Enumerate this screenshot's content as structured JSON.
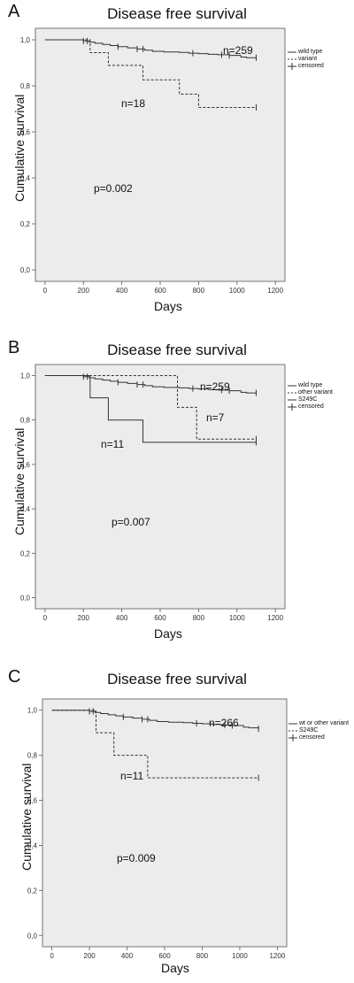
{
  "chart_data": [
    {
      "type": "line",
      "panel_letter": "A",
      "title": "Disease free survival",
      "xlabel": "Days",
      "ylabel": "Cumulative survival",
      "xlim": [
        -50,
        1250
      ],
      "ylim": [
        -0.05,
        1.05
      ],
      "xticks": [
        0,
        200,
        400,
        600,
        800,
        1000,
        1200
      ],
      "yticks": [
        0.0,
        0.2,
        0.4,
        0.6,
        0.8,
        1.0
      ],
      "ytick_labels": [
        "0,0",
        "0,2",
        "0,4",
        "0,6",
        "0,8",
        "1,0"
      ],
      "p_value": "p=0.002",
      "n_labels": [
        {
          "text": "n=259",
          "x": 840,
          "y": 0.955
        },
        {
          "text": "n=18",
          "x": 370,
          "y": 0.79
        }
      ],
      "legend": [
        "wild type",
        "variant",
        "censored"
      ],
      "legend_position": "top-right",
      "series": [
        {
          "name": "wild type",
          "style": "solid",
          "x": [
            0,
            100,
            200,
            230,
            260,
            300,
            340,
            380,
            430,
            480,
            520,
            560,
            620,
            700,
            750,
            800,
            850,
            900,
            960,
            1020,
            1050,
            1100
          ],
          "y": [
            1.0,
            1.0,
            0.995,
            0.99,
            0.985,
            0.98,
            0.975,
            0.97,
            0.965,
            0.96,
            0.955,
            0.95,
            0.947,
            0.945,
            0.942,
            0.94,
            0.937,
            0.935,
            0.932,
            0.925,
            0.922,
            0.922
          ],
          "censored_x": [
            200,
            220,
            380,
            480,
            510,
            770,
            920,
            960,
            1100
          ]
        },
        {
          "name": "variant",
          "style": "dashed",
          "x": [
            0,
            235,
            330,
            510,
            700,
            800,
            1100
          ],
          "y": [
            1.0,
            0.944,
            0.889,
            0.826,
            0.764,
            0.706,
            0.706
          ],
          "censored_x": [
            1100
          ]
        }
      ]
    },
    {
      "type": "line",
      "panel_letter": "B",
      "title": "Disease free survival",
      "xlabel": "Days",
      "ylabel": "Cumulative survival",
      "xlim": [
        -50,
        1250
      ],
      "ylim": [
        -0.05,
        1.05
      ],
      "xticks": [
        0,
        200,
        400,
        600,
        800,
        1000,
        1200
      ],
      "yticks": [
        0.0,
        0.2,
        0.4,
        0.6,
        0.8,
        1.0
      ],
      "ytick_labels": [
        "0,0",
        "0,2",
        "0,4",
        "0,6",
        "0,8",
        "1,0"
      ],
      "p_value": "p=0.007",
      "n_labels": [
        {
          "text": "n=259",
          "x": 840,
          "y": 0.96
        },
        {
          "text": "n=7",
          "x": 850,
          "y": 0.8
        },
        {
          "text": "n=11",
          "x": 300,
          "y": 0.7
        }
      ],
      "legend": [
        "wild type",
        "other variant",
        "S249C",
        "censored"
      ],
      "legend_position": "top-right",
      "series": [
        {
          "name": "wild type",
          "style": "solid",
          "x": [
            0,
            100,
            200,
            230,
            260,
            300,
            340,
            380,
            430,
            480,
            520,
            560,
            620,
            700,
            750,
            800,
            850,
            900,
            960,
            1020,
            1050,
            1100
          ],
          "y": [
            1.0,
            1.0,
            0.995,
            0.99,
            0.985,
            0.98,
            0.975,
            0.97,
            0.965,
            0.96,
            0.955,
            0.95,
            0.947,
            0.945,
            0.942,
            0.94,
            0.937,
            0.935,
            0.932,
            0.925,
            0.922,
            0.922
          ],
          "censored_x": [
            200,
            220,
            380,
            480,
            510,
            770,
            920,
            960,
            1100
          ]
        },
        {
          "name": "other variant",
          "style": "dashed",
          "x": [
            0,
            690,
            790,
            1100
          ],
          "y": [
            1.0,
            0.857,
            0.714,
            0.714
          ],
          "censored_x": [
            1100
          ]
        },
        {
          "name": "S249C",
          "style": "solid",
          "x": [
            0,
            235,
            330,
            510,
            1100
          ],
          "y": [
            1.0,
            0.9,
            0.8,
            0.7,
            0.7
          ],
          "censored_x": [
            1100
          ]
        }
      ]
    },
    {
      "type": "line",
      "panel_letter": "C",
      "title": "Disease free survival",
      "xlabel": "Days",
      "ylabel": "Cumulative survival",
      "xlim": [
        -50,
        1250
      ],
      "ylim": [
        -0.05,
        1.05
      ],
      "xticks": [
        0,
        200,
        400,
        600,
        800,
        1000,
        1200
      ],
      "yticks": [
        0.0,
        0.2,
        0.4,
        0.6,
        0.8,
        1.0
      ],
      "ytick_labels": [
        "0,0",
        "0,2",
        "0,4",
        "0,6",
        "0,8",
        "1,0"
      ],
      "p_value": "p=0.009",
      "n_labels": [
        {
          "text": "n=266",
          "x": 840,
          "y": 0.955
        },
        {
          "text": "n=11",
          "x": 350,
          "y": 0.78
        }
      ],
      "legend": [
        "wt or other variant",
        "S249C",
        "censored"
      ],
      "legend_position": "top-right",
      "series": [
        {
          "name": "wt or other variant",
          "style": "solid",
          "x": [
            0,
            100,
            200,
            230,
            260,
            300,
            340,
            380,
            430,
            480,
            520,
            560,
            620,
            700,
            750,
            800,
            850,
            900,
            960,
            1020,
            1050,
            1100
          ],
          "y": [
            1.0,
            1.0,
            0.995,
            0.99,
            0.985,
            0.98,
            0.975,
            0.97,
            0.965,
            0.96,
            0.955,
            0.95,
            0.947,
            0.945,
            0.942,
            0.94,
            0.937,
            0.935,
            0.932,
            0.925,
            0.922,
            0.918
          ],
          "censored_x": [
            200,
            220,
            380,
            480,
            510,
            770,
            920,
            960,
            1100
          ]
        },
        {
          "name": "S249C",
          "style": "dashed",
          "x": [
            0,
            235,
            330,
            510,
            1100
          ],
          "y": [
            1.0,
            0.9,
            0.8,
            0.7,
            0.7
          ],
          "censored_x": [
            1100
          ]
        }
      ]
    }
  ],
  "colors": {
    "plot_background": "#ececec",
    "line": "#333333",
    "page_background": "#ffffff"
  }
}
